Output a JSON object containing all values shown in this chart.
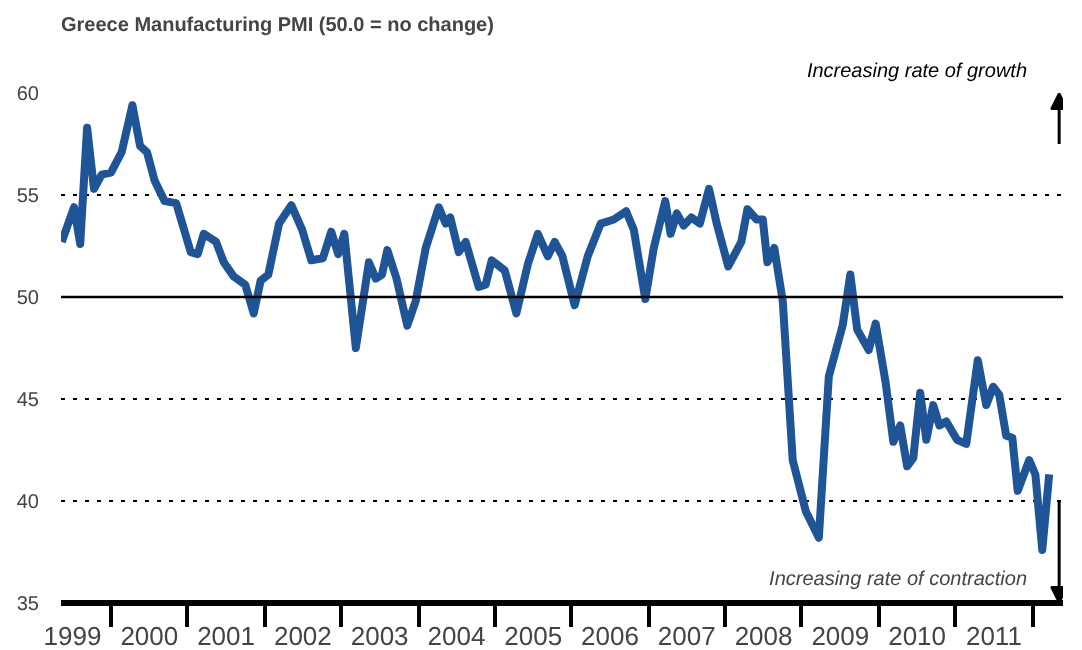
{
  "chart_data": {
    "type": "line",
    "title": "Greece Manufacturing PMI (50.0 = no change)",
    "annotations": [
      "Increasing rate of growth",
      "Increasing rate of contraction"
    ],
    "x": [
      1999.36,
      1999.52,
      1999.6,
      1999.69,
      1999.78,
      1999.88,
      2000.0,
      2000.14,
      2000.28,
      2000.38,
      2000.47,
      2000.57,
      2000.7,
      2000.85,
      2001.04,
      2001.13,
      2001.21,
      2001.37,
      2001.47,
      2001.6,
      2001.75,
      2001.86,
      2001.95,
      2002.05,
      2002.19,
      2002.35,
      2002.49,
      2002.61,
      2002.76,
      2002.87,
      2002.96,
      2003.04,
      2003.19,
      2003.36,
      2003.45,
      2003.53,
      2003.6,
      2003.72,
      2003.86,
      2003.97,
      2004.1,
      2004.27,
      2004.36,
      2004.42,
      2004.53,
      2004.62,
      2004.79,
      2004.88,
      2004.96,
      2005.13,
      2005.28,
      2005.43,
      2005.56,
      2005.69,
      2005.78,
      2005.88,
      2006.04,
      2006.21,
      2006.38,
      2006.55,
      2006.71,
      2006.81,
      2006.96,
      2007.07,
      2007.22,
      2007.29,
      2007.37,
      2007.46,
      2007.56,
      2007.67,
      2007.79,
      2007.89,
      2008.04,
      2008.21,
      2008.29,
      2008.41,
      2008.49,
      2008.55,
      2008.64,
      2008.75,
      2008.88,
      2009.05,
      2009.22,
      2009.35,
      2009.53,
      2009.63,
      2009.72,
      2009.87,
      2009.96,
      2010.09,
      2010.19,
      2010.28,
      2010.37,
      2010.45,
      2010.54,
      2010.62,
      2010.71,
      2010.79,
      2010.88,
      2011.02,
      2011.14,
      2011.29,
      2011.4,
      2011.49,
      2011.57,
      2011.66,
      2011.74,
      2011.81,
      2011.96,
      2012.04,
      2012.13,
      2012.22
    ],
    "series": [
      {
        "color": "#1f5596",
        "values": [
          52.7,
          54.4,
          52.6,
          58.3,
          55.3,
          56.0,
          56.1,
          57.1,
          59.4,
          57.4,
          57.1,
          55.7,
          54.7,
          54.6,
          52.2,
          52.1,
          53.1,
          52.7,
          51.7,
          51.0,
          50.6,
          49.2,
          50.8,
          51.1,
          53.6,
          54.5,
          53.3,
          51.8,
          51.9,
          53.2,
          52.1,
          53.1,
          47.5,
          51.7,
          50.9,
          51.1,
          52.3,
          50.9,
          48.6,
          49.8,
          52.4,
          54.4,
          53.6,
          53.9,
          52.2,
          52.7,
          50.5,
          50.6,
          51.8,
          51.3,
          49.2,
          51.6,
          53.1,
          52.0,
          52.7,
          52.0,
          49.6,
          52.0,
          53.6,
          53.8,
          54.2,
          53.3,
          49.9,
          52.4,
          54.7,
          53.1,
          54.1,
          53.5,
          53.9,
          53.6,
          55.3,
          53.6,
          51.5,
          52.7,
          54.3,
          53.8,
          53.8,
          51.7,
          52.4,
          49.8,
          42.0,
          39.5,
          38.2,
          46.1,
          48.6,
          51.1,
          48.4,
          47.4,
          48.7,
          45.8,
          42.9,
          43.7,
          41.7,
          42.1,
          45.3,
          43.0,
          44.7,
          43.7,
          43.9,
          43.0,
          42.8,
          46.9,
          44.7,
          45.6,
          45.2,
          43.2,
          43.1,
          40.5,
          42.0,
          41.3,
          37.6,
          41.3
        ]
      }
    ],
    "xlim": [
      1999.35,
      2012.4
    ],
    "ylim": [
      35,
      60
    ],
    "xticks": [
      {
        "value": 1999.5,
        "label": "1999"
      },
      {
        "value": 2000,
        "label": null
      },
      {
        "value": 2000.5,
        "label": "2000"
      },
      {
        "value": 2001,
        "label": null
      },
      {
        "value": 2001.5,
        "label": "2001"
      },
      {
        "value": 2002,
        "label": null
      },
      {
        "value": 2002.5,
        "label": "2002"
      },
      {
        "value": 2003,
        "label": null
      },
      {
        "value": 2003.5,
        "label": "2003"
      },
      {
        "value": 2004,
        "label": null
      },
      {
        "value": 2004.5,
        "label": "2004"
      },
      {
        "value": 2005,
        "label": null
      },
      {
        "value": 2005.5,
        "label": "2005"
      },
      {
        "value": 2006,
        "label": null
      },
      {
        "value": 2006.5,
        "label": "2006"
      },
      {
        "value": 2007,
        "label": null
      },
      {
        "value": 2007.5,
        "label": "2007"
      },
      {
        "value": 2008,
        "label": null
      },
      {
        "value": 2008.5,
        "label": "2008"
      },
      {
        "value": 2009,
        "label": null
      },
      {
        "value": 2009.5,
        "label": "2009"
      },
      {
        "value": 2010,
        "label": null
      },
      {
        "value": 2010.5,
        "label": "2010"
      },
      {
        "value": 2011,
        "label": null
      },
      {
        "value": 2011.5,
        "label": "2011"
      },
      {
        "value": 2012,
        "label": null
      }
    ],
    "yticks": [
      35,
      40,
      45,
      50,
      55,
      60
    ],
    "grid": "y",
    "marker": "none",
    "line_style": "solid",
    "ref_lines": [
      {
        "axis": "y",
        "value": 50,
        "label": null,
        "color": "#000000",
        "line_style": "solid"
      }
    ]
  }
}
